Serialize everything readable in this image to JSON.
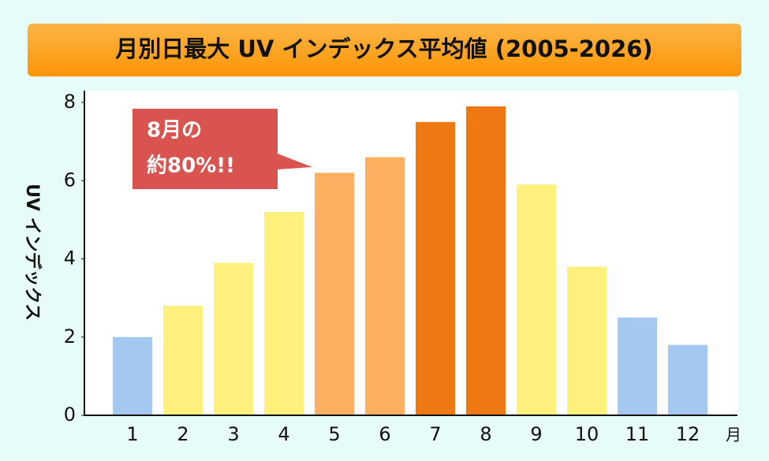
{
  "chart_data": {
    "type": "bar",
    "title": "月別日最大 UV インデックス平均値 (2005-2026)",
    "y_label": "UV インデックス",
    "x_label": "月",
    "annotation": [
      "8月の",
      "約80%!!"
    ],
    "categories": [
      "1",
      "2",
      "3",
      "4",
      "5",
      "6",
      "7",
      "8",
      "9",
      "10",
      "11",
      "12"
    ],
    "values": [
      2.0,
      2.8,
      3.9,
      5.2,
      6.2,
      6.6,
      7.5,
      7.9,
      5.9,
      3.8,
      2.5,
      1.8
    ],
    "colors": [
      "#a3c9f1",
      "#fdf07c",
      "#fdf07c",
      "#fdf07c",
      "#fdb05f",
      "#fdb05f",
      "#ee7811",
      "#ee7811",
      "#fdf07c",
      "#fdf07c",
      "#a3c9f1",
      "#a3c9f1"
    ],
    "ylim": [
      0,
      8
    ],
    "yticks": [
      0,
      2,
      4,
      6,
      8
    ]
  }
}
